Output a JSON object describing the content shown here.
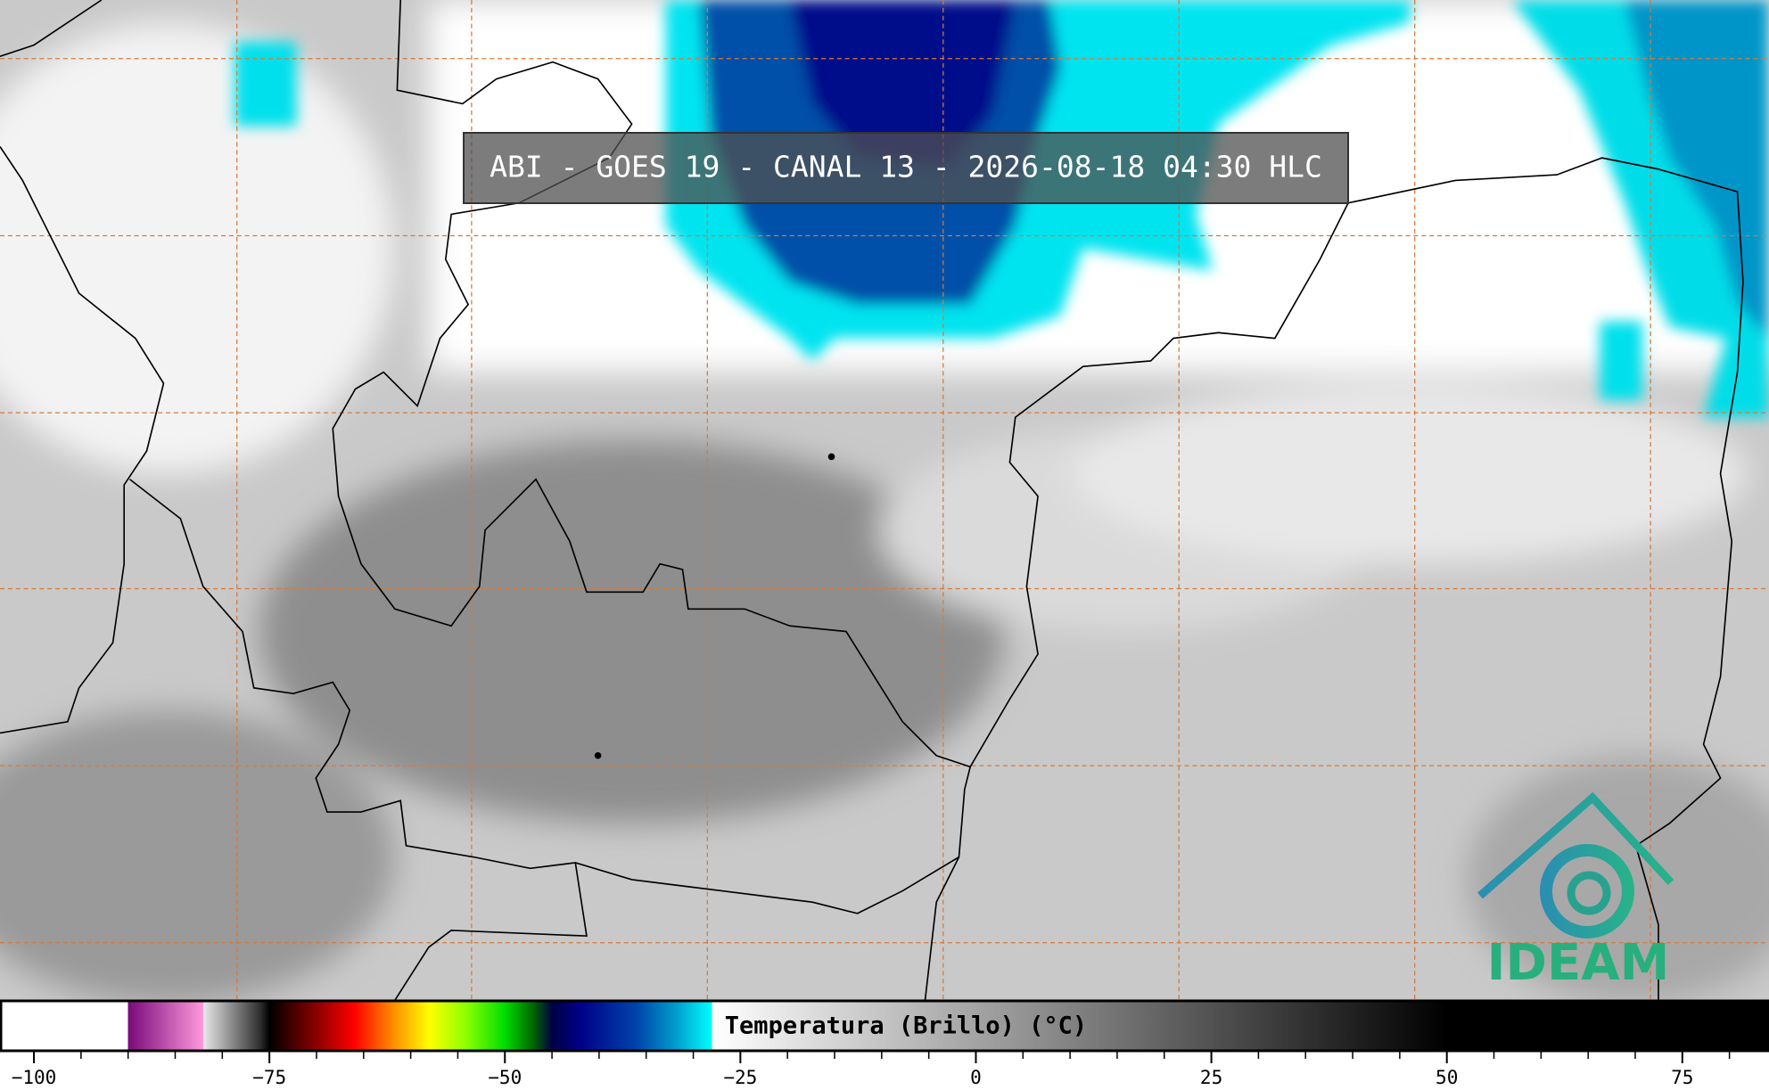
{
  "header": {
    "title": "ABI - GOES 19 - CANAL 13 - 2026-08-18 04:30 HLC"
  },
  "logo": {
    "text": "IDEAM"
  },
  "colorbar": {
    "label": "Temperatura (Brillo) (°C)",
    "xlim": [
      -103.6,
      84.2
    ],
    "ticks": [
      {
        "value": -100,
        "label": "−100"
      },
      {
        "value": -75,
        "label": "−75"
      },
      {
        "value": -50,
        "label": "−50"
      },
      {
        "value": -25,
        "label": "−25"
      },
      0,
      25,
      50,
      75
    ],
    "minor_ticks": [
      -95,
      -90,
      -85,
      -80,
      -70,
      -65,
      -60,
      -55,
      -45,
      -40,
      -35,
      -30,
      -20,
      -15,
      -10,
      -5,
      5,
      10,
      15,
      20,
      30,
      35,
      40,
      45,
      55,
      60,
      65,
      70,
      80
    ],
    "stops": [
      {
        "value": -90,
        "color": "#ffffff"
      },
      {
        "value": -90,
        "color": "#7a0a7a"
      },
      {
        "value": -82,
        "color": "#ff99dd"
      },
      {
        "value": -82,
        "color": "#e8e8e8"
      },
      {
        "value": -76,
        "color": "#303030"
      },
      {
        "value": -75,
        "color": "#000000"
      },
      {
        "value": -70,
        "color": "#8b0000"
      },
      {
        "value": -66,
        "color": "#ff0000"
      },
      {
        "value": -62,
        "color": "#ff8800"
      },
      {
        "value": -58,
        "color": "#ffff00"
      },
      {
        "value": -54,
        "color": "#88ff00"
      },
      {
        "value": -50,
        "color": "#00dd00"
      },
      {
        "value": -47,
        "color": "#006600"
      },
      {
        "value": -45,
        "color": "#000044"
      },
      {
        "value": -42,
        "color": "#000088"
      },
      {
        "value": -36,
        "color": "#0044aa"
      },
      {
        "value": -32,
        "color": "#0099cc"
      },
      {
        "value": -28,
        "color": "#00ffff"
      },
      {
        "value": -28,
        "color": "#ffffff"
      },
      {
        "value": 50,
        "color": "#000000"
      }
    ]
  }
}
